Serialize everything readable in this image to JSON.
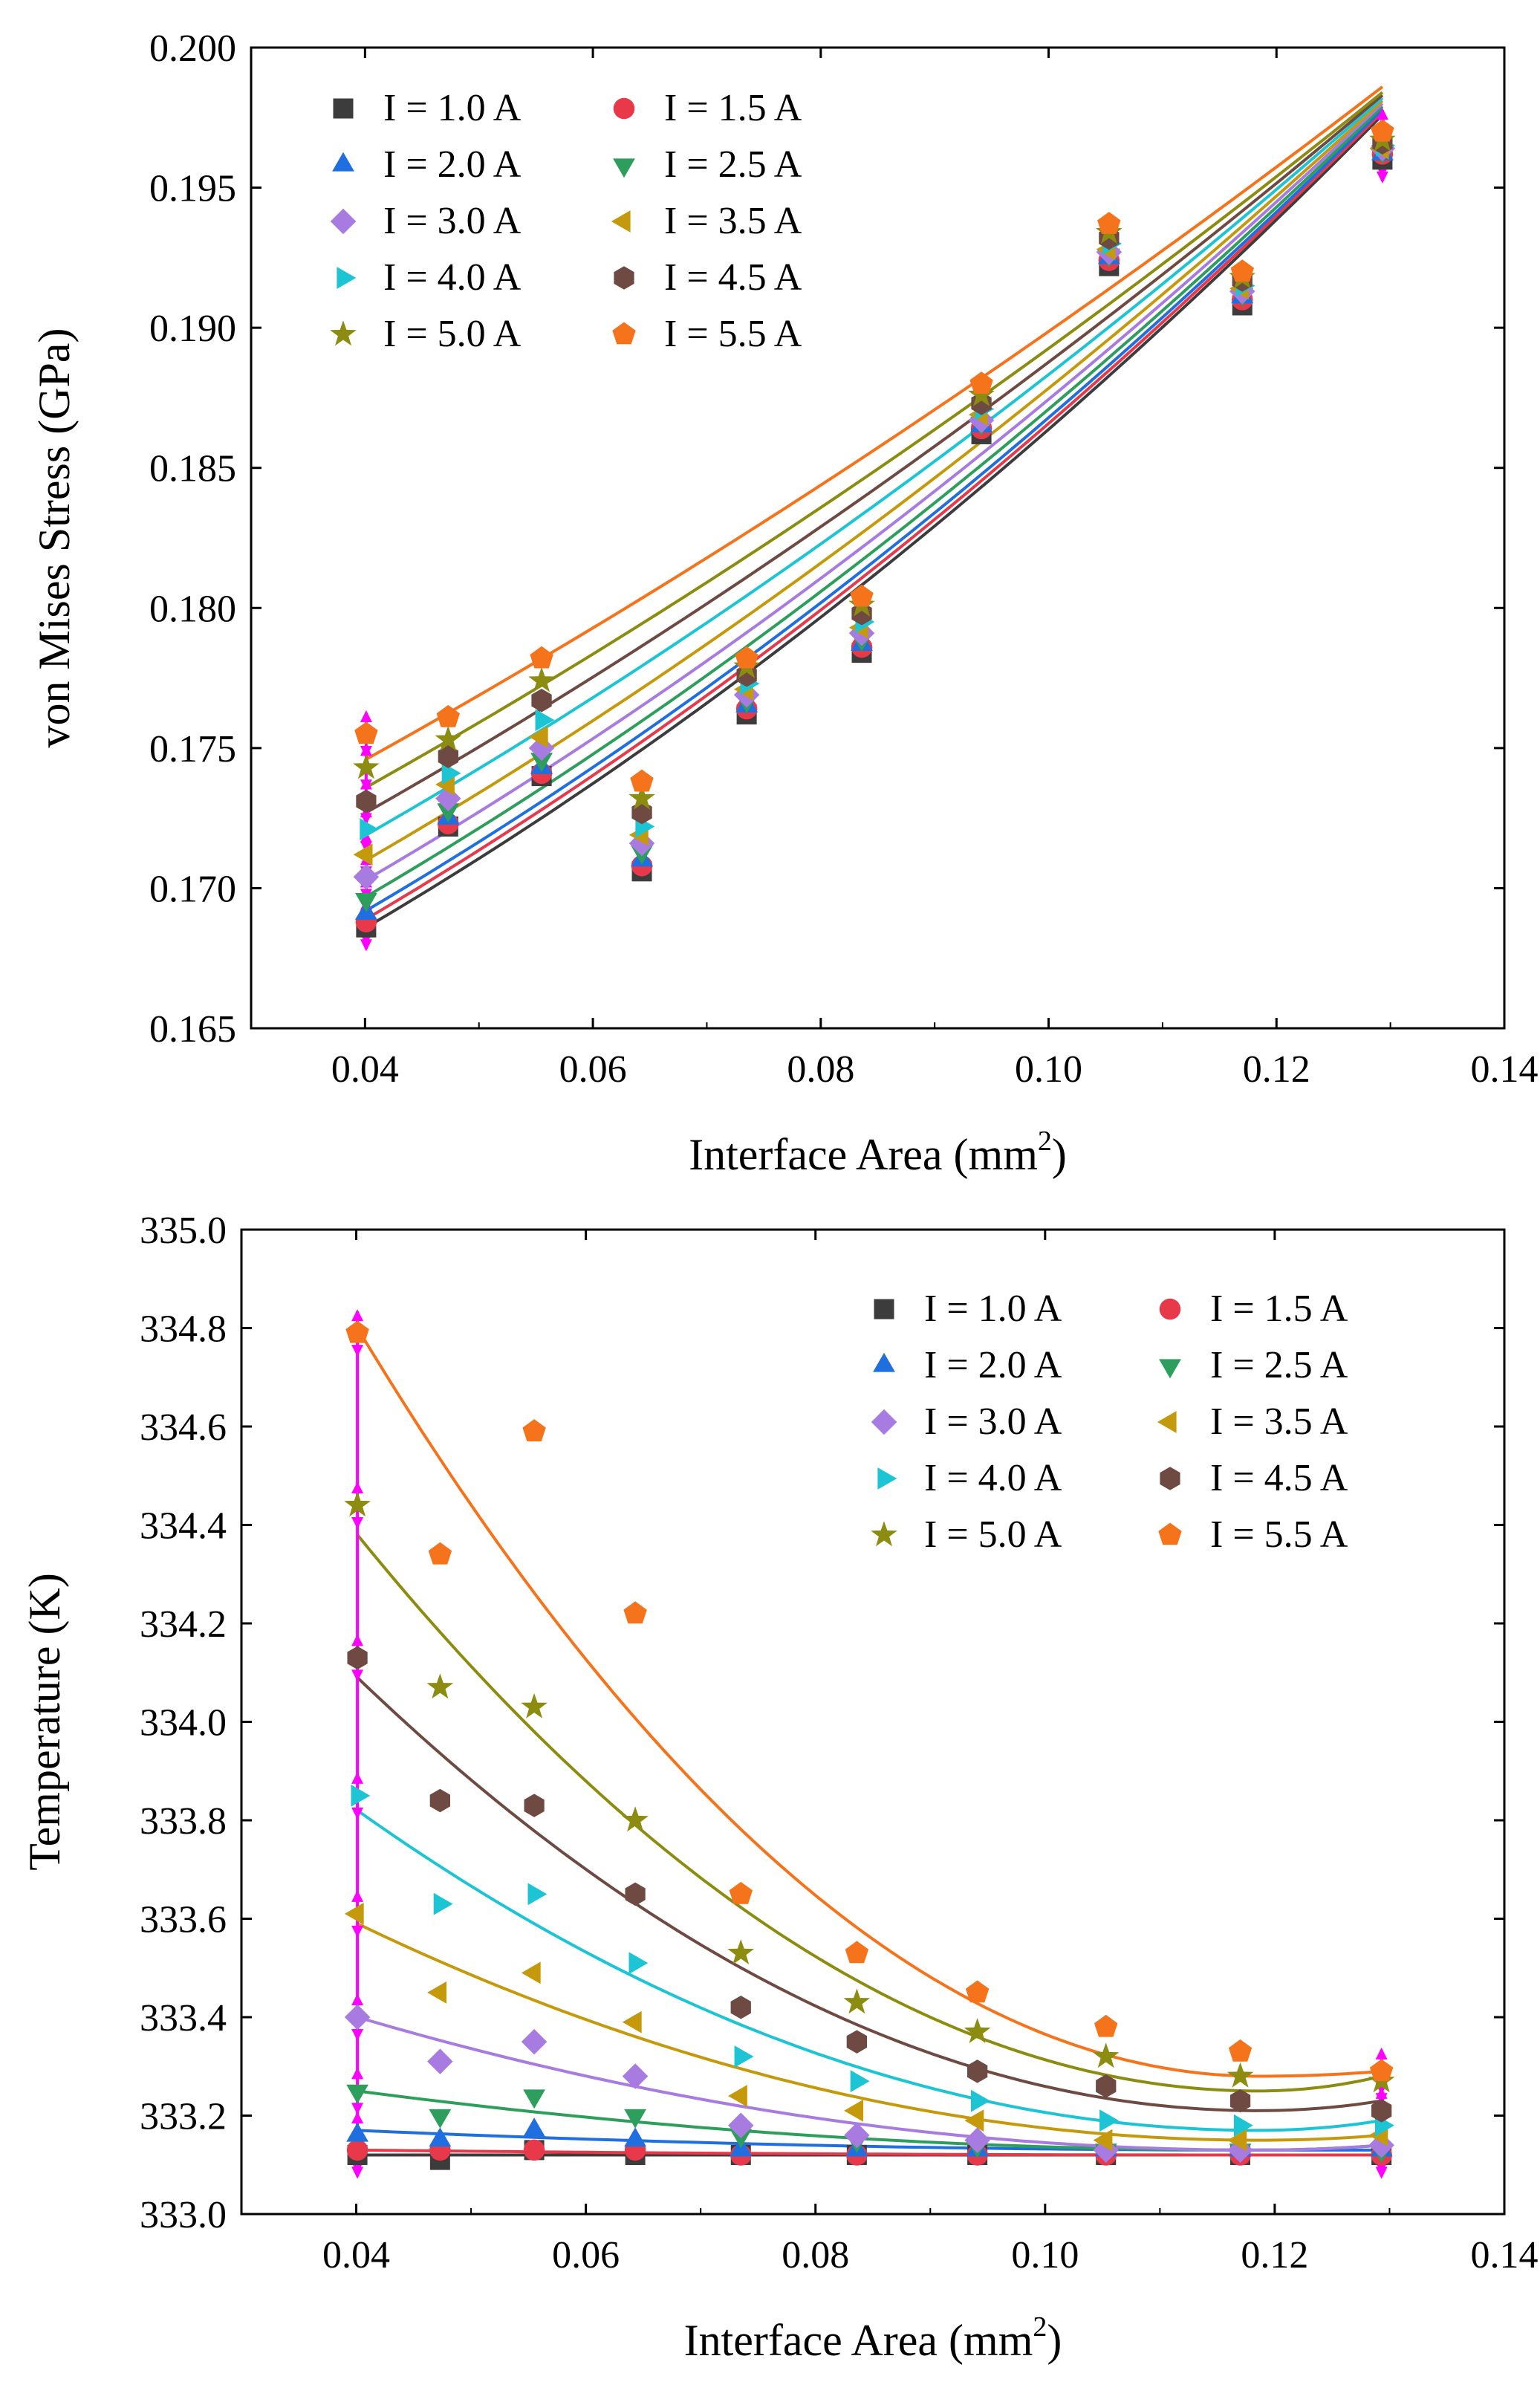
{
  "chart_data": [
    {
      "type": "scatter",
      "panel": "top",
      "title": "",
      "xlabel": "Interface Area (mm",
      "xlabel_superscript": "2",
      "xlabel_suffix": ")",
      "ylabel": "von Mises Stress (GPa)",
      "xlim": [
        0.03,
        0.14
      ],
      "ylim": [
        0.165,
        0.2
      ],
      "xticks": [
        "0.04",
        "0.06",
        "0.08",
        "0.10",
        "0.12",
        "0.14"
      ],
      "yticks": [
        "0.165",
        "0.170",
        "0.175",
        "0.180",
        "0.185",
        "0.190",
        "0.195",
        "0.200"
      ],
      "legend_position": "top-left",
      "x": [
        0.0401,
        0.0473,
        0.0555,
        0.0643,
        0.0735,
        0.0836,
        0.0941,
        0.1053,
        0.117,
        0.1293
      ],
      "series": [
        {
          "name": "I = 1.0 A",
          "values": [
            0.1686,
            0.1722,
            0.174,
            0.1706,
            0.1762,
            0.1784,
            0.1862,
            0.1922,
            0.1908,
            0.196
          ]
        },
        {
          "name": "I = 1.5 A",
          "values": [
            0.1688,
            0.1723,
            0.1741,
            0.1708,
            0.1764,
            0.1786,
            0.1864,
            0.1924,
            0.191,
            0.1962
          ]
        },
        {
          "name": "I = 2.0 A",
          "values": [
            0.1691,
            0.1725,
            0.1743,
            0.171,
            0.1765,
            0.1787,
            0.1865,
            0.1925,
            0.1911,
            0.1962
          ]
        },
        {
          "name": "I = 2.5 A",
          "values": [
            0.1696,
            0.1728,
            0.1746,
            0.1713,
            0.1767,
            0.1789,
            0.1866,
            0.1926,
            0.1912,
            0.1963
          ]
        },
        {
          "name": "I = 3.0 A",
          "values": [
            0.1704,
            0.1732,
            0.175,
            0.1716,
            0.1769,
            0.1791,
            0.1867,
            0.1927,
            0.1913,
            0.1964
          ]
        },
        {
          "name": "I = 3.5 A",
          "values": [
            0.1712,
            0.1737,
            0.1754,
            0.1719,
            0.1771,
            0.1793,
            0.1869,
            0.1928,
            0.1914,
            0.1964
          ]
        },
        {
          "name": "I = 4.0 A",
          "values": [
            0.1721,
            0.1741,
            0.176,
            0.1722,
            0.1773,
            0.1795,
            0.1871,
            0.193,
            0.1915,
            0.1965
          ]
        },
        {
          "name": "I = 4.5 A",
          "values": [
            0.1731,
            0.1747,
            0.1767,
            0.1727,
            0.1776,
            0.1798,
            0.1873,
            0.1932,
            0.1917,
            0.1966
          ]
        },
        {
          "name": "I = 5.0 A",
          "values": [
            0.1743,
            0.1753,
            0.1774,
            0.1732,
            0.1779,
            0.1801,
            0.1876,
            0.1934,
            0.1918,
            0.1967
          ]
        },
        {
          "name": "I = 5.5 A",
          "values": [
            0.1755,
            0.1761,
            0.1782,
            0.1738,
            0.1782,
            0.1804,
            0.188,
            0.1937,
            0.192,
            0.197
          ]
        }
      ],
      "fit_curves": [
        {
          "name": "I = 1.0 A",
          "y_start": 0.1686,
          "y_end": 0.1976
        },
        {
          "name": "I = 1.5 A",
          "y_start": 0.1689,
          "y_end": 0.1977
        },
        {
          "name": "I = 2.0 A",
          "y_start": 0.1692,
          "y_end": 0.1978
        },
        {
          "name": "I = 2.5 A",
          "y_start": 0.1697,
          "y_end": 0.1979
        },
        {
          "name": "I = 3.0 A",
          "y_start": 0.1703,
          "y_end": 0.198
        },
        {
          "name": "I = 3.5 A",
          "y_start": 0.171,
          "y_end": 0.1981
        },
        {
          "name": "I = 4.0 A",
          "y_start": 0.1719,
          "y_end": 0.1982
        },
        {
          "name": "I = 4.5 A",
          "y_start": 0.1727,
          "y_end": 0.1983
        },
        {
          "name": "I = 5.0 A",
          "y_start": 0.1736,
          "y_end": 0.1984
        },
        {
          "name": "I = 5.5 A",
          "y_start": 0.1746,
          "y_end": 0.1986
        }
      ]
    },
    {
      "type": "scatter",
      "panel": "bottom",
      "title": "",
      "xlabel": "Interface Area (mm",
      "xlabel_superscript": "2",
      "xlabel_suffix": ")",
      "ylabel": "Temperature (K)",
      "xlim": [
        0.03,
        0.14
      ],
      "ylim": [
        333.0,
        335.0
      ],
      "xticks": [
        "0.04",
        "0.06",
        "0.08",
        "0.10",
        "0.12",
        "0.14"
      ],
      "yticks": [
        "333.0",
        "333.2",
        "333.4",
        "333.6",
        "333.8",
        "334.0",
        "334.2",
        "334.4",
        "334.6",
        "334.8",
        "335.0"
      ],
      "legend_position": "top-right",
      "x": [
        0.0401,
        0.0473,
        0.0555,
        0.0643,
        0.0735,
        0.0836,
        0.0941,
        0.1053,
        0.117,
        0.1293
      ],
      "series": [
        {
          "name": "I = 1.0 A",
          "values": [
            333.12,
            333.11,
            333.13,
            333.12,
            333.12,
            333.12,
            333.12,
            333.12,
            333.12,
            333.12
          ]
        },
        {
          "name": "I = 1.5 A",
          "values": [
            333.13,
            333.13,
            333.13,
            333.13,
            333.12,
            333.12,
            333.12,
            333.12,
            333.12,
            333.12
          ]
        },
        {
          "name": "I = 2.0 A",
          "values": [
            333.16,
            333.15,
            333.17,
            333.15,
            333.13,
            333.13,
            333.13,
            333.13,
            333.13,
            333.13
          ]
        },
        {
          "name": "I = 2.5 A",
          "values": [
            333.25,
            333.2,
            333.24,
            333.2,
            333.16,
            333.15,
            333.14,
            333.13,
            333.13,
            333.13
          ]
        },
        {
          "name": "I = 3.0 A",
          "values": [
            333.4,
            333.31,
            333.35,
            333.28,
            333.18,
            333.16,
            333.15,
            333.13,
            333.13,
            333.14
          ]
        },
        {
          "name": "I = 3.5 A",
          "values": [
            333.61,
            333.45,
            333.49,
            333.39,
            333.24,
            333.21,
            333.19,
            333.15,
            333.15,
            333.16
          ]
        },
        {
          "name": "I = 4.0 A",
          "values": [
            333.85,
            333.63,
            333.65,
            333.51,
            333.32,
            333.27,
            333.23,
            333.19,
            333.18,
            333.18
          ]
        },
        {
          "name": "I = 4.5 A",
          "values": [
            334.13,
            333.84,
            333.83,
            333.65,
            333.42,
            333.35,
            333.29,
            333.26,
            333.23,
            333.21
          ]
        },
        {
          "name": "I = 5.0 A",
          "values": [
            334.44,
            334.07,
            334.03,
            333.8,
            333.53,
            333.43,
            333.37,
            333.32,
            333.28,
            333.27
          ]
        },
        {
          "name": "I = 5.5 A",
          "values": [
            334.79,
            334.34,
            334.59,
            334.22,
            333.65,
            333.53,
            333.45,
            333.38,
            333.33,
            333.29
          ]
        }
      ],
      "fit_curves": [
        {
          "name": "I = 1.0 A",
          "y_start": 333.12,
          "y_min": 333.12,
          "y_end": 333.12
        },
        {
          "name": "I = 1.5 A",
          "y_start": 333.13,
          "y_min": 333.12,
          "y_end": 333.12
        },
        {
          "name": "I = 2.0 A",
          "y_start": 333.17,
          "y_min": 333.13,
          "y_end": 333.13
        },
        {
          "name": "I = 2.5 A",
          "y_start": 333.25,
          "y_min": 333.13,
          "y_end": 333.14
        },
        {
          "name": "I = 3.0 A",
          "y_start": 333.4,
          "y_min": 333.13,
          "y_end": 333.14
        },
        {
          "name": "I = 3.5 A",
          "y_start": 333.59,
          "y_min": 333.15,
          "y_end": 333.16
        },
        {
          "name": "I = 4.0 A",
          "y_start": 333.82,
          "y_min": 333.17,
          "y_end": 333.19
        },
        {
          "name": "I = 4.5 A",
          "y_start": 334.09,
          "y_min": 333.21,
          "y_end": 333.23
        },
        {
          "name": "I = 5.0 A",
          "y_start": 334.38,
          "y_min": 333.25,
          "y_end": 333.28
        },
        {
          "name": "I = 5.5 A",
          "y_start": 334.8,
          "y_min": 333.28,
          "y_end": 333.29
        }
      ]
    }
  ],
  "series_styles": [
    {
      "name": "I = 1.0 A",
      "marker": "square",
      "color": "#3c3c3c"
    },
    {
      "name": "I = 1.5 A",
      "marker": "circle",
      "color": "#e8394b"
    },
    {
      "name": "I = 2.0 A",
      "marker": "triangle-up",
      "color": "#1f6fe0"
    },
    {
      "name": "I = 2.5 A",
      "marker": "triangle-down",
      "color": "#2e9e5c"
    },
    {
      "name": "I = 3.0 A",
      "marker": "diamond",
      "color": "#a77be0"
    },
    {
      "name": "I = 3.5 A",
      "marker": "triangle-left",
      "color": "#c49a0c"
    },
    {
      "name": "I = 4.0 A",
      "marker": "triangle-right",
      "color": "#1cc4d4"
    },
    {
      "name": "I = 4.5 A",
      "marker": "hexagon",
      "color": "#6e4a42"
    },
    {
      "name": "I = 5.0 A",
      "marker": "star",
      "color": "#8c8c10"
    },
    {
      "name": "I = 5.5 A",
      "marker": "pentagon",
      "color": "#f5731a"
    }
  ],
  "errorbar_color": "#ff00ff"
}
